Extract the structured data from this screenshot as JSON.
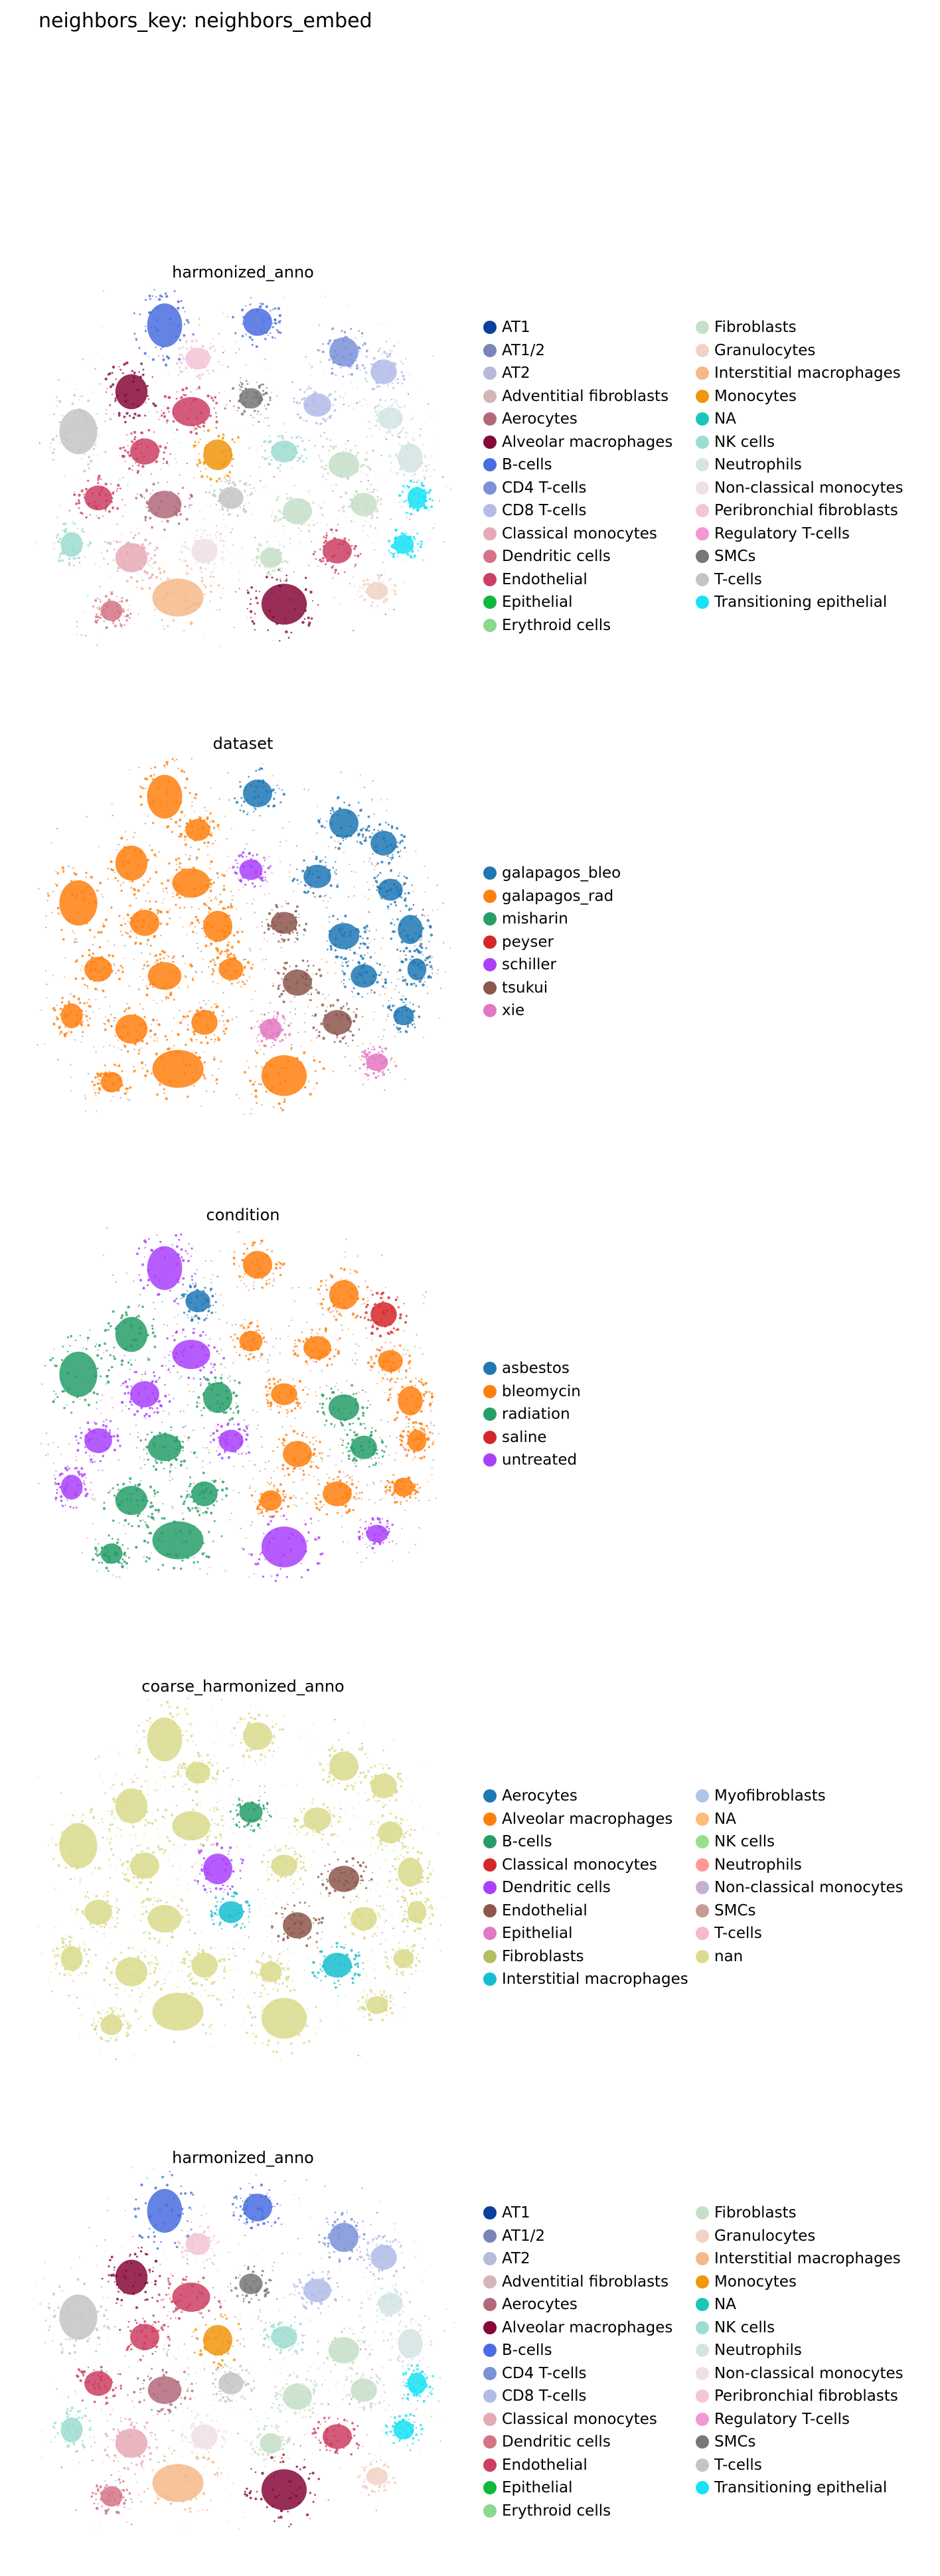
{
  "figure": {
    "suptitle": "neighbors_key: neighbors_embed"
  },
  "chart_data": [
    {
      "type": "scatter",
      "title": "harmonized_anno",
      "xlabel": "",
      "ylabel": "",
      "grid": false,
      "legend_position": "right",
      "legend_columns": 2,
      "categories": [
        {
          "name": "AT1",
          "color": "#0a3f9a"
        },
        {
          "name": "AT1/2",
          "color": "#7985b8"
        },
        {
          "name": "AT2",
          "color": "#b7bad8"
        },
        {
          "name": "Adventitial fibroblasts",
          "color": "#d5b6b6"
        },
        {
          "name": "Aerocytes",
          "color": "#b26a7a"
        },
        {
          "name": "Alveolar macrophages",
          "color": "#86083a"
        },
        {
          "name": "B-cells",
          "color": "#4a6ddf"
        },
        {
          "name": "CD4 T-cells",
          "color": "#7b91d8"
        },
        {
          "name": "CD8 T-cells",
          "color": "#b2bce6"
        },
        {
          "name": "Classical monocytes",
          "color": "#e6aab6"
        },
        {
          "name": "Dendritic cells",
          "color": "#d47486"
        },
        {
          "name": "Endothelial",
          "color": "#cd3e63"
        },
        {
          "name": "Epithelial",
          "color": "#10b83c"
        },
        {
          "name": "Erythroid cells",
          "color": "#8bd88f"
        },
        {
          "name": "Fibroblasts",
          "color": "#c7dfc8"
        },
        {
          "name": "Granulocytes",
          "color": "#f2d2c6"
        },
        {
          "name": "Interstitial macrophages",
          "color": "#f4b889"
        },
        {
          "name": "Monocytes",
          "color": "#f0970d"
        },
        {
          "name": "NA",
          "color": "#19c6b8"
        },
        {
          "name": "NK cells",
          "color": "#9ddcd1"
        },
        {
          "name": "Neutrophils",
          "color": "#d3e4e3"
        },
        {
          "name": "Non-classical monocytes",
          "color": "#f0e0e3"
        },
        {
          "name": "Peribronchial fibroblasts",
          "color": "#f2c6d6"
        },
        {
          "name": "Regulatory T-cells",
          "color": "#f298d4"
        },
        {
          "name": "SMCs",
          "color": "#777777"
        },
        {
          "name": "T-cells",
          "color": "#c4c4c4"
        },
        {
          "name": "Transitioning epithelial",
          "color": "#18e2f5"
        }
      ]
    },
    {
      "type": "scatter",
      "title": "dataset",
      "xlabel": "",
      "ylabel": "",
      "grid": false,
      "legend_position": "right",
      "legend_columns": 1,
      "categories": [
        {
          "name": "galapagos_bleo",
          "color": "#1f77b4"
        },
        {
          "name": "galapagos_rad",
          "color": "#ff7f0e"
        },
        {
          "name": "misharin",
          "color": "#279e68"
        },
        {
          "name": "peyser",
          "color": "#d62728"
        },
        {
          "name": "schiller",
          "color": "#aa40fc"
        },
        {
          "name": "tsukui",
          "color": "#8c564b"
        },
        {
          "name": "xie",
          "color": "#e377c2"
        }
      ]
    },
    {
      "type": "scatter",
      "title": "condition",
      "xlabel": "",
      "ylabel": "",
      "grid": false,
      "legend_position": "right",
      "legend_columns": 1,
      "categories": [
        {
          "name": "asbestos",
          "color": "#1f77b4"
        },
        {
          "name": "bleomycin",
          "color": "#ff7f0e"
        },
        {
          "name": "radiation",
          "color": "#279e68"
        },
        {
          "name": "saline",
          "color": "#d62728"
        },
        {
          "name": "untreated",
          "color": "#aa40fc"
        }
      ]
    },
    {
      "type": "scatter",
      "title": "coarse_harmonized_anno",
      "xlabel": "",
      "ylabel": "",
      "grid": false,
      "legend_position": "right",
      "legend_columns": 2,
      "categories": [
        {
          "name": "Aerocytes",
          "color": "#1f77b4"
        },
        {
          "name": "Alveolar macrophages",
          "color": "#ff7f0e"
        },
        {
          "name": "B-cells",
          "color": "#279e68"
        },
        {
          "name": "Classical monocytes",
          "color": "#d62728"
        },
        {
          "name": "Dendritic cells",
          "color": "#aa40fc"
        },
        {
          "name": "Endothelial",
          "color": "#8c564b"
        },
        {
          "name": "Epithelial",
          "color": "#e377c2"
        },
        {
          "name": "Fibroblasts",
          "color": "#b5bd61"
        },
        {
          "name": "Interstitial macrophages",
          "color": "#17becf"
        },
        {
          "name": "Myofibroblasts",
          "color": "#aec7e8"
        },
        {
          "name": "NA",
          "color": "#ffbb78"
        },
        {
          "name": "NK cells",
          "color": "#98df8a"
        },
        {
          "name": "Neutrophils",
          "color": "#ff9896"
        },
        {
          "name": "Non-classical monocytes",
          "color": "#c5b0d5"
        },
        {
          "name": "SMCs",
          "color": "#c49c94"
        },
        {
          "name": "T-cells",
          "color": "#f7b6d2"
        },
        {
          "name": "nan",
          "color": "#dbdb8d"
        }
      ]
    },
    {
      "type": "scatter",
      "title": "harmonized_anno",
      "xlabel": "",
      "ylabel": "",
      "grid": false,
      "legend_position": "right",
      "legend_columns": 2,
      "categories": [
        {
          "name": "AT1",
          "color": "#0a3f9a"
        },
        {
          "name": "AT1/2",
          "color": "#7985b8"
        },
        {
          "name": "AT2",
          "color": "#b7bad8"
        },
        {
          "name": "Adventitial fibroblasts",
          "color": "#d5b6b6"
        },
        {
          "name": "Aerocytes",
          "color": "#b26a7a"
        },
        {
          "name": "Alveolar macrophages",
          "color": "#86083a"
        },
        {
          "name": "B-cells",
          "color": "#4a6ddf"
        },
        {
          "name": "CD4 T-cells",
          "color": "#7b91d8"
        },
        {
          "name": "CD8 T-cells",
          "color": "#b2bce6"
        },
        {
          "name": "Classical monocytes",
          "color": "#e6aab6"
        },
        {
          "name": "Dendritic cells",
          "color": "#d47486"
        },
        {
          "name": "Endothelial",
          "color": "#cd3e63"
        },
        {
          "name": "Epithelial",
          "color": "#10b83c"
        },
        {
          "name": "Erythroid cells",
          "color": "#8bd88f"
        },
        {
          "name": "Fibroblasts",
          "color": "#c7dfc8"
        },
        {
          "name": "Granulocytes",
          "color": "#f2d2c6"
        },
        {
          "name": "Interstitial macrophages",
          "color": "#f4b889"
        },
        {
          "name": "Monocytes",
          "color": "#f0970d"
        },
        {
          "name": "NA",
          "color": "#19c6b8"
        },
        {
          "name": "NK cells",
          "color": "#9ddcd1"
        },
        {
          "name": "Neutrophils",
          "color": "#d3e4e3"
        },
        {
          "name": "Non-classical monocytes",
          "color": "#f0e0e3"
        },
        {
          "name": "Peribronchial fibroblasts",
          "color": "#f2c6d6"
        },
        {
          "name": "Regulatory T-cells",
          "color": "#f298d4"
        },
        {
          "name": "SMCs",
          "color": "#777777"
        },
        {
          "name": "T-cells",
          "color": "#c4c4c4"
        },
        {
          "name": "Transitioning epithelial",
          "color": "#18e2f5"
        }
      ]
    }
  ]
}
